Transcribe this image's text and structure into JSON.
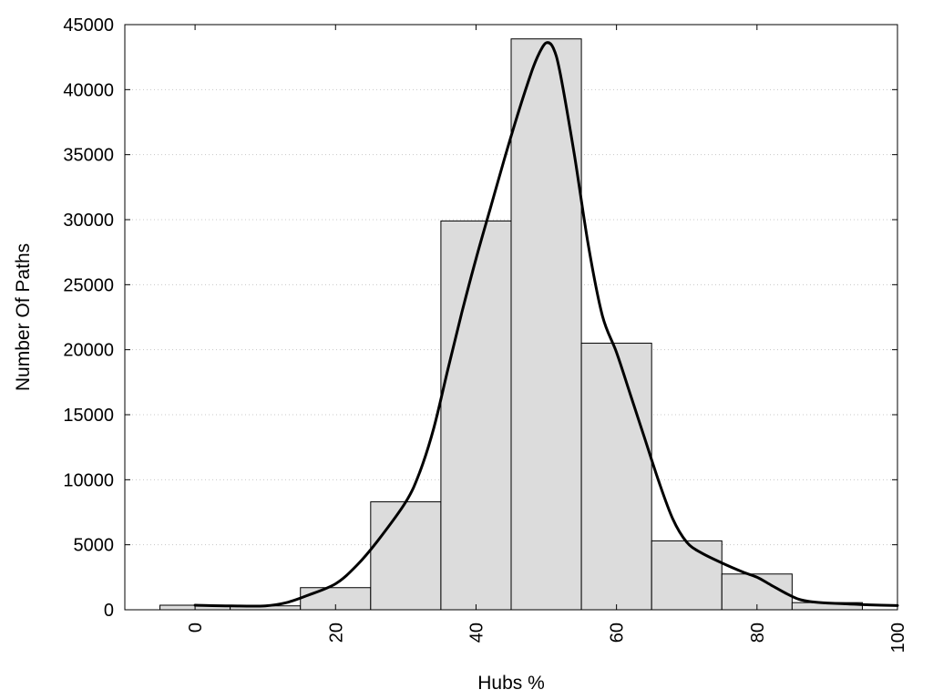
{
  "chart_data": {
    "type": "bar",
    "title": "",
    "xlabel": "Hubs %",
    "ylabel": "Number Of Paths",
    "xlim": [
      -10,
      100
    ],
    "ylim": [
      0,
      45000
    ],
    "x_ticks": [
      0,
      20,
      40,
      60,
      80,
      100
    ],
    "y_ticks": [
      0,
      5000,
      10000,
      15000,
      20000,
      25000,
      30000,
      35000,
      40000,
      45000
    ],
    "grid": "horizontal dotted",
    "bin_width": 10,
    "bins": [
      {
        "center": 0,
        "value": 350
      },
      {
        "center": 10,
        "value": 300
      },
      {
        "center": 20,
        "value": 1700
      },
      {
        "center": 30,
        "value": 8300
      },
      {
        "center": 40,
        "value": 29900
      },
      {
        "center": 50,
        "value": 43900
      },
      {
        "center": 60,
        "value": 20500
      },
      {
        "center": 70,
        "value": 5300
      },
      {
        "center": 80,
        "value": 2750
      },
      {
        "center": 90,
        "value": 550
      }
    ],
    "density_curve": {
      "x": [
        0,
        5,
        10,
        13,
        16,
        20,
        23,
        26,
        30,
        32,
        34,
        36,
        38,
        40,
        42,
        44,
        46,
        48,
        49,
        50,
        51,
        52,
        54,
        56,
        58,
        60,
        62,
        64,
        66,
        68,
        70,
        72,
        75,
        78,
        80,
        82,
        84,
        86,
        88,
        90,
        93,
        96,
        100
      ],
      "y": [
        350,
        300,
        300,
        550,
        1100,
        2000,
        3400,
        5300,
        8300,
        10600,
        14000,
        18500,
        22900,
        27000,
        30800,
        34600,
        38200,
        41500,
        42800,
        43600,
        43200,
        41200,
        35000,
        28000,
        22600,
        19800,
        16500,
        13200,
        9900,
        7000,
        5200,
        4400,
        3600,
        2900,
        2500,
        1900,
        1300,
        800,
        600,
        520,
        450,
        380,
        320
      ]
    }
  }
}
